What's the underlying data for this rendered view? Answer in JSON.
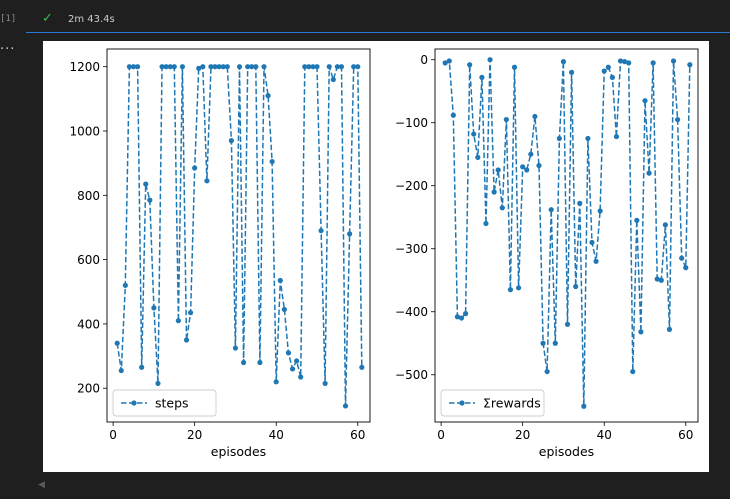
{
  "cell": {
    "exec_count": "[1]",
    "more": "...",
    "duration": "2m 43.4s",
    "status_icon": "check-icon"
  },
  "colors": {
    "series": "#1f77b4"
  },
  "chart_data": [
    {
      "type": "line",
      "style": "dashed line with dot markers",
      "xlabel": "episodes",
      "ylabel": "",
      "title": "",
      "xlim": [
        -1.5,
        63
      ],
      "ylim": [
        95,
        1255
      ],
      "xticks": [
        0,
        20,
        40,
        60
      ],
      "yticks": [
        200,
        400,
        600,
        800,
        1000,
        1200
      ],
      "grid": false,
      "legend": {
        "position": "lower left",
        "entries": [
          "steps"
        ]
      },
      "series": [
        {
          "name": "steps",
          "x": [
            1,
            2,
            3,
            4,
            5,
            6,
            7,
            8,
            9,
            10,
            11,
            12,
            13,
            14,
            15,
            16,
            17,
            18,
            19,
            20,
            21,
            22,
            23,
            24,
            25,
            26,
            27,
            28,
            29,
            30,
            31,
            32,
            33,
            34,
            35,
            36,
            37,
            38,
            39,
            40,
            41,
            42,
            43,
            44,
            45,
            46,
            47,
            48,
            49,
            50,
            51,
            52,
            53,
            54,
            55,
            56,
            57,
            58,
            59,
            60,
            61
          ],
          "y": [
            340,
            255,
            520,
            1200,
            1200,
            1200,
            265,
            835,
            785,
            450,
            215,
            1200,
            1200,
            1200,
            1200,
            410,
            1200,
            350,
            435,
            885,
            1195,
            1200,
            845,
            1200,
            1200,
            1200,
            1200,
            1200,
            970,
            325,
            1200,
            280,
            1200,
            1200,
            1200,
            280,
            1200,
            1110,
            905,
            220,
            535,
            445,
            310,
            260,
            285,
            235,
            1200,
            1200,
            1200,
            1200,
            690,
            215,
            1200,
            1160,
            1200,
            1200,
            145,
            680,
            1200,
            1200,
            265
          ]
        }
      ]
    },
    {
      "type": "line",
      "style": "dashed line with dot markers",
      "xlabel": "episodes",
      "ylabel": "",
      "title": "",
      "xlim": [
        -1.5,
        63
      ],
      "ylim": [
        -575,
        17
      ],
      "xticks": [
        0,
        20,
        40,
        60
      ],
      "yticks": [
        0,
        -100,
        -200,
        -300,
        -400,
        -500
      ],
      "grid": false,
      "legend": {
        "position": "lower left",
        "entries": [
          "Σrewards"
        ]
      },
      "series": [
        {
          "name": "Σrewards",
          "x": [
            1,
            2,
            3,
            4,
            5,
            6,
            7,
            8,
            9,
            10,
            11,
            12,
            13,
            14,
            15,
            16,
            17,
            18,
            19,
            20,
            21,
            22,
            23,
            24,
            25,
            26,
            27,
            28,
            29,
            30,
            31,
            32,
            33,
            34,
            35,
            36,
            37,
            38,
            39,
            40,
            41,
            42,
            43,
            44,
            45,
            46,
            47,
            48,
            49,
            50,
            51,
            52,
            53,
            54,
            55,
            56,
            57,
            58,
            59,
            60,
            61
          ],
          "y": [
            -5,
            -2,
            -88,
            -408,
            -410,
            -403,
            -8,
            -118,
            -155,
            -28,
            -260,
            0,
            -210,
            -175,
            -235,
            -95,
            -365,
            -12,
            -362,
            -170,
            -175,
            -150,
            -90,
            -168,
            -450,
            -495,
            -238,
            -450,
            -125,
            -3,
            -420,
            -20,
            -360,
            -228,
            -550,
            -125,
            -290,
            -320,
            -240,
            -18,
            -12,
            -28,
            -122,
            -2,
            -3,
            -5,
            -495,
            -255,
            -432,
            -65,
            -180,
            -5,
            -348,
            -350,
            -262,
            -428,
            -2,
            -95,
            -315,
            -330,
            -8
          ]
        }
      ]
    }
  ]
}
